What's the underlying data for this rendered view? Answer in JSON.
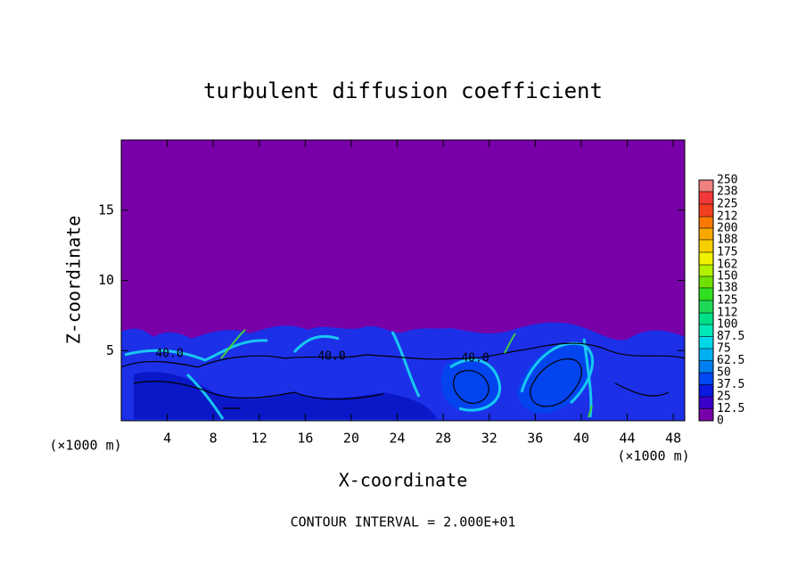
{
  "chart_data": {
    "type": "contour",
    "title": "turbulent diffusion coefficient",
    "xlabel": "X-coordinate",
    "ylabel": "Z-coordinate",
    "x_unit_label": "(×1000 m)",
    "footer": "CONTOUR INTERVAL = 2.000E+01",
    "xlim": [
      0,
      49
    ],
    "ylim": [
      0,
      20
    ],
    "xticks": [
      4,
      8,
      12,
      16,
      20,
      24,
      28,
      32,
      36,
      40,
      44,
      48
    ],
    "yticks": [
      5,
      10,
      15
    ],
    "contour_labels": [
      "40.0",
      "40.0",
      "40.0"
    ],
    "colorbar": {
      "levels": [
        0,
        12.5,
        25,
        37.5,
        50,
        62.5,
        75,
        87.5,
        100,
        112,
        125,
        138,
        150,
        162,
        175,
        188,
        200,
        212,
        225,
        238,
        250
      ],
      "colors": [
        "#7800a8",
        "#3a00c8",
        "#0a18e0",
        "#0048f0",
        "#0080f0",
        "#00b0f0",
        "#00d8e8",
        "#00e8b8",
        "#00e088",
        "#20d858",
        "#30e020",
        "#70e000",
        "#b0f000",
        "#f0f000",
        "#f8d000",
        "#f8a800",
        "#f87800",
        "#f04020",
        "#f03838",
        "#f08080"
      ]
    }
  }
}
